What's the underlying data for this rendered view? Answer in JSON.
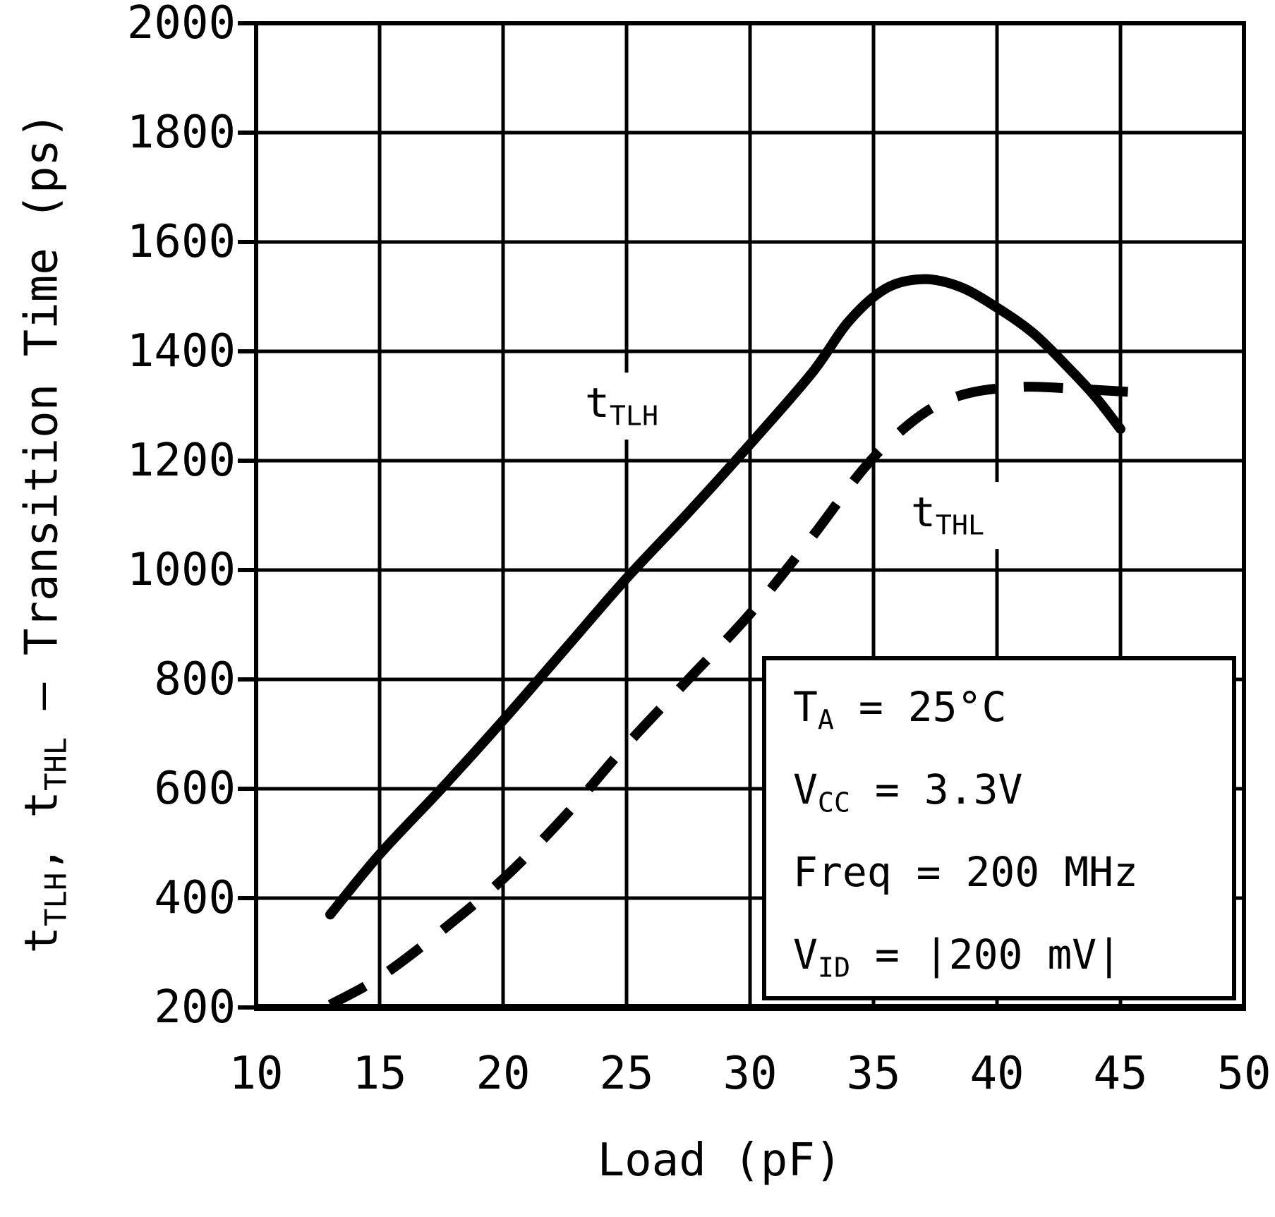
{
  "colors": {
    "ink": "#000000",
    "paper": "#ffffff"
  },
  "chart_data": {
    "type": "line",
    "title": "",
    "xlabel": "Load (pF)",
    "ylabel": "t_TLH, t_THL – Transition Time (ps)",
    "ylabel_parts": [
      {
        "base": "t",
        "sub": "TLH"
      },
      {
        "base": ", t",
        "sub": "THL"
      },
      {
        "base": " – Transition Time (ps)",
        "sub": ""
      }
    ],
    "xlim": [
      10,
      50
    ],
    "ylim": [
      200,
      2000
    ],
    "x_ticks": [
      10,
      15,
      20,
      25,
      30,
      35,
      40,
      45,
      50
    ],
    "y_ticks": [
      200,
      400,
      600,
      800,
      1000,
      1200,
      1400,
      1600,
      1800,
      2000
    ],
    "grid": true,
    "legend_position": "inline-labels",
    "series": [
      {
        "id": "ttlh",
        "name": "t_TLH",
        "style": "solid",
        "label": {
          "base": "t",
          "sub": "TLH",
          "x": 24.8,
          "y": 1300
        },
        "points": [
          [
            13,
            370
          ],
          [
            15,
            480
          ],
          [
            17.5,
            600
          ],
          [
            20,
            725
          ],
          [
            22.5,
            855
          ],
          [
            25,
            985
          ],
          [
            27.5,
            1105
          ],
          [
            30,
            1230
          ],
          [
            32.5,
            1360
          ],
          [
            34,
            1455
          ],
          [
            35.5,
            1515
          ],
          [
            37,
            1532
          ],
          [
            38.5,
            1518
          ],
          [
            40,
            1480
          ],
          [
            41.5,
            1432
          ],
          [
            43,
            1365
          ],
          [
            44,
            1316
          ],
          [
            45,
            1258
          ]
        ]
      },
      {
        "id": "tthl",
        "name": "t_THL",
        "style": "dashed",
        "label": {
          "base": "t",
          "sub": "THL",
          "x": 38,
          "y": 1100
        },
        "points": [
          [
            13,
            205
          ],
          [
            15,
            255
          ],
          [
            17.5,
            340
          ],
          [
            20,
            435
          ],
          [
            22.5,
            550
          ],
          [
            25,
            680
          ],
          [
            27.5,
            800
          ],
          [
            30,
            920
          ],
          [
            32.5,
            1060
          ],
          [
            34.5,
            1180
          ],
          [
            36,
            1250
          ],
          [
            37.5,
            1300
          ],
          [
            39,
            1325
          ],
          [
            41,
            1335
          ],
          [
            43,
            1332
          ],
          [
            45.3,
            1326
          ]
        ]
      }
    ],
    "conditions": {
      "lines": [
        {
          "base": "T",
          "sub": "A",
          "rest": " = 25°C"
        },
        {
          "base": "V",
          "sub": "CC",
          "rest": " = 3.3V"
        },
        {
          "base": "Freq",
          "sub": "",
          "rest": " = 200 MHz"
        },
        {
          "base": "V",
          "sub": "ID",
          "rest": " = |200 mV|"
        }
      ]
    }
  }
}
